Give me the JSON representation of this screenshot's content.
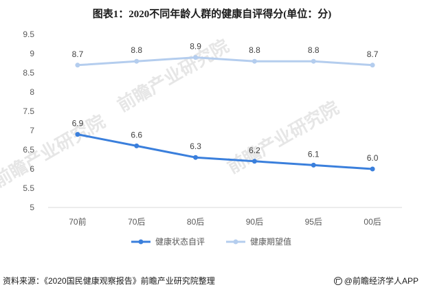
{
  "title": "图表1：2020不同年龄人群的健康自评得分(单位：分)",
  "chart_data": {
    "type": "line",
    "categories": [
      "70前",
      "70后",
      "80后",
      "90后",
      "95后",
      "00后"
    ],
    "series": [
      {
        "name": "健康状态自评",
        "values": [
          6.9,
          6.6,
          6.3,
          6.2,
          6.1,
          6.0
        ],
        "color": "#3a7fdc"
      },
      {
        "name": "健康期望值",
        "values": [
          8.7,
          8.8,
          8.9,
          8.8,
          8.8,
          8.7
        ],
        "color": "#b4cdee"
      }
    ],
    "data_labels": {
      "健康状态自评": [
        "6.9",
        "6.6",
        "6.3",
        "6.2",
        "6.1",
        "6.0"
      ],
      "健康期望值": [
        "8.7",
        "8.8",
        "8.9",
        "8.8",
        "8.8",
        "8.7"
      ]
    },
    "yticks": [
      "5",
      "5.5",
      "6",
      "6.5",
      "7",
      "7.5",
      "8",
      "8.5",
      "9",
      "9.5"
    ],
    "ylim": [
      5,
      9.5
    ],
    "grid": false,
    "legend": "bottom"
  },
  "footer": {
    "source": "资料来源：《2020国民健康观察报告》前瞻产业研究院整理",
    "brand": "@前瞻经济学人APP"
  },
  "watermark": "前瞻产业研究院"
}
